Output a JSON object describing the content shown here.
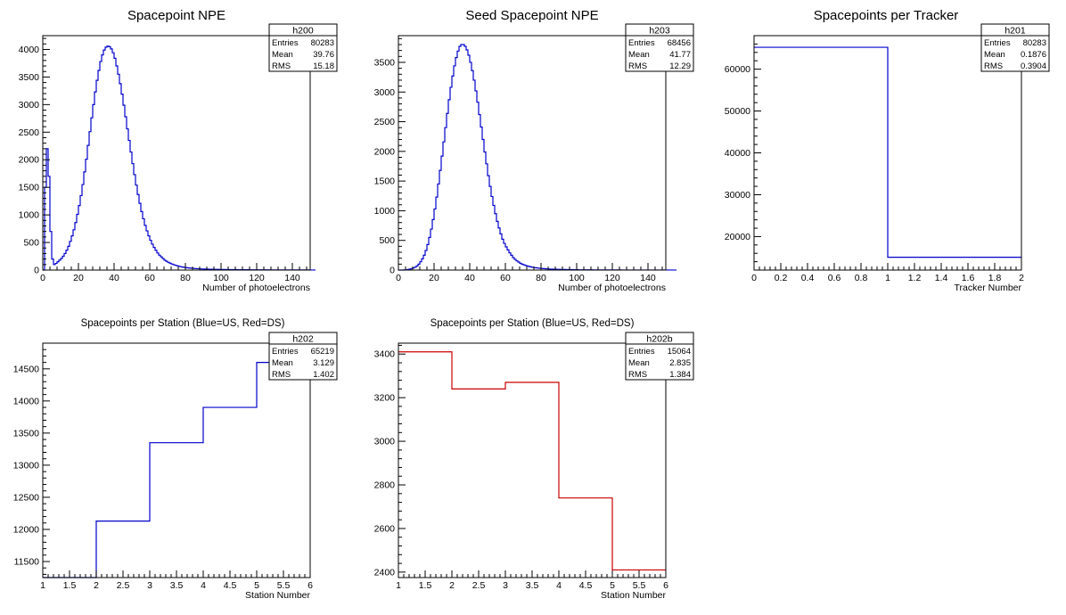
{
  "chart_data": [
    {
      "id": "h200",
      "type": "histogram",
      "title": "Spacepoint NPE",
      "xlabel": "Number of photoelectrons",
      "ylabel": "",
      "color": "#0000cc",
      "xlim": [
        0,
        150
      ],
      "ylim": [
        0,
        4250
      ],
      "xticks": [
        0,
        20,
        40,
        60,
        80,
        100,
        120,
        140
      ],
      "yticks": [
        0,
        500,
        1000,
        1500,
        2000,
        2500,
        3000,
        3500,
        4000
      ],
      "bin_width": 1,
      "bin_start": 0,
      "values": [
        0,
        1500,
        2200,
        1700,
        700,
        200,
        100,
        120,
        150,
        180,
        210,
        250,
        300,
        360,
        430,
        520,
        620,
        730,
        860,
        1010,
        1170,
        1350,
        1550,
        1780,
        2010,
        2260,
        2510,
        2760,
        3000,
        3230,
        3440,
        3620,
        3780,
        3900,
        3990,
        4040,
        4060,
        4050,
        4010,
        3940,
        3840,
        3700,
        3550,
        3380,
        3190,
        2990,
        2780,
        2560,
        2350,
        2140,
        1930,
        1730,
        1540,
        1370,
        1210,
        1060,
        930,
        810,
        710,
        620,
        540,
        470,
        410,
        360,
        310,
        270,
        240,
        210,
        180,
        160,
        140,
        125,
        110,
        98,
        88,
        78,
        70,
        62,
        55,
        49,
        44,
        40,
        36,
        33,
        30,
        27,
        25,
        23,
        21,
        19,
        18,
        17,
        16,
        15,
        14,
        13,
        13,
        12,
        12,
        11,
        11,
        10,
        10,
        9,
        9,
        9,
        8,
        8,
        8,
        7,
        7,
        7,
        6,
        6,
        6,
        6,
        5,
        5,
        5,
        5,
        5,
        4,
        4,
        4,
        4,
        4,
        4,
        3,
        3,
        3,
        3,
        3,
        3,
        3,
        3,
        2,
        2,
        2,
        2,
        2,
        2,
        2,
        2,
        2,
        2,
        2,
        2,
        2,
        2,
        2,
        1,
        1,
        1
      ],
      "stats": {
        "name": "h200",
        "entries": "80283",
        "mean": "39.76",
        "rms": "15.18"
      }
    },
    {
      "id": "h203",
      "type": "histogram",
      "title": "Seed Spacepoint NPE",
      "xlabel": "Number of photoelectrons",
      "ylabel": "",
      "color": "#0000cc",
      "xlim": [
        0,
        150
      ],
      "ylim": [
        0,
        3950
      ],
      "xticks": [
        0,
        20,
        40,
        60,
        80,
        100,
        120,
        140
      ],
      "yticks": [
        0,
        500,
        1000,
        1500,
        2000,
        2500,
        3000,
        3500
      ],
      "bin_width": 1,
      "bin_start": 0,
      "values": [
        0,
        0,
        0,
        2,
        5,
        10,
        15,
        25,
        35,
        50,
        70,
        100,
        140,
        190,
        250,
        330,
        430,
        550,
        690,
        850,
        1030,
        1230,
        1450,
        1680,
        1920,
        2160,
        2400,
        2640,
        2870,
        3080,
        3270,
        3440,
        3580,
        3690,
        3770,
        3800,
        3800,
        3770,
        3710,
        3620,
        3500,
        3360,
        3200,
        3020,
        2830,
        2620,
        2410,
        2200,
        1990,
        1790,
        1590,
        1410,
        1240,
        1090,
        950,
        820,
        710,
        610,
        520,
        450,
        390,
        340,
        290,
        250,
        210,
        180,
        155,
        135,
        115,
        100,
        88,
        77,
        68,
        60,
        53,
        47,
        42,
        37,
        33,
        30,
        27,
        24,
        22,
        20,
        18,
        16,
        15,
        14,
        13,
        12,
        11,
        10,
        10,
        9,
        8,
        8,
        7,
        7,
        6,
        6,
        6,
        5,
        5,
        5,
        5,
        4,
        4,
        4,
        4,
        3,
        3,
        3,
        3,
        3,
        3,
        2,
        2,
        2,
        2,
        2,
        2,
        2,
        2,
        2,
        2,
        1,
        1,
        1,
        1,
        1,
        1,
        1,
        1,
        1,
        1,
        1,
        1,
        1,
        1,
        1,
        1,
        1,
        1,
        1,
        1,
        1,
        1,
        1,
        1,
        1,
        1,
        1,
        1,
        1,
        1,
        1
      ],
      "stats": {
        "name": "h203",
        "entries": "68456",
        "mean": "41.77",
        "rms": "12.29"
      }
    },
    {
      "id": "h201",
      "type": "histogram",
      "title": "Spacepoints per Tracker",
      "xlabel": "Tracker Number",
      "ylabel": "",
      "color": "#0000cc",
      "xlim": [
        0,
        2
      ],
      "ylim": [
        12000,
        68000
      ],
      "xticks": [
        0,
        0.2,
        0.4,
        0.6,
        0.8,
        1,
        1.2,
        1.4,
        1.6,
        1.8,
        2
      ],
      "yticks": [
        20000,
        30000,
        40000,
        50000,
        60000
      ],
      "bin_width": 1,
      "bin_start": 0,
      "values": [
        65219,
        15064
      ],
      "stats": {
        "name": "h201",
        "entries": "80283",
        "mean": "0.1876",
        "rms": "0.3904"
      }
    },
    {
      "id": "h202",
      "type": "histogram",
      "title": "Spacepoints per Station (Blue=US, Red=DS)",
      "xlabel": "Station Number",
      "ylabel": "",
      "color": "#0000cc",
      "xlim": [
        1,
        6
      ],
      "ylim": [
        11250,
        14900
      ],
      "xticks": [
        1,
        1.5,
        2,
        2.5,
        3,
        3.5,
        4,
        4.5,
        5,
        5.5,
        6
      ],
      "yticks": [
        11500,
        12000,
        12500,
        13000,
        13500,
        14000,
        14500
      ],
      "bin_width": 1,
      "bin_start": 1,
      "values": [
        11230,
        12130,
        13350,
        13900,
        14600
      ],
      "stats": {
        "name": "h202",
        "entries": "65219",
        "mean": "3.129",
        "rms": "1.402"
      }
    },
    {
      "id": "h202b",
      "type": "histogram",
      "title": "Spacepoints per Station (Blue=US, Red=DS)",
      "xlabel": "Station Number",
      "ylabel": "",
      "color": "#cc0000",
      "xlim": [
        1,
        6
      ],
      "ylim": [
        2375,
        3450
      ],
      "xticks": [
        1,
        1.5,
        2,
        2.5,
        3,
        3.5,
        4,
        4.5,
        5,
        5.5,
        6
      ],
      "yticks": [
        2400,
        2600,
        2800,
        3000,
        3200,
        3400
      ],
      "bin_width": 1,
      "bin_start": 1,
      "values": [
        3410,
        3240,
        3270,
        2740,
        2410
      ],
      "stats": {
        "name": "h202b",
        "entries": "15064",
        "mean": "2.835",
        "rms": "1.384"
      }
    }
  ],
  "stats_labels": {
    "entries": "Entries",
    "mean": "Mean",
    "rms": "RMS"
  }
}
